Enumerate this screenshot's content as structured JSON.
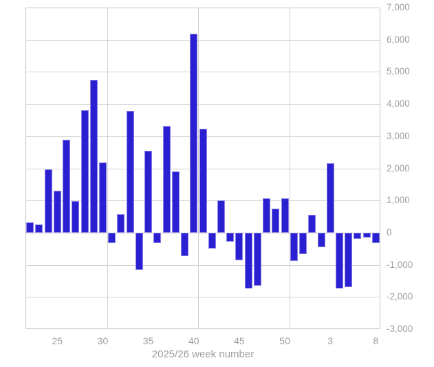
{
  "chart_data": {
    "type": "bar",
    "title": "",
    "xlabel": "2025/26 week number",
    "ylabel": "",
    "ylim": [
      -3000,
      7000
    ],
    "grid": true,
    "legend": "none",
    "y_axis_side": "right",
    "y_tick_values": [
      7000,
      6000,
      5000,
      4000,
      3000,
      2000,
      1000,
      0,
      -1000,
      -2000,
      -3000
    ],
    "y_tick_labels": [
      "7,000",
      "6,000",
      "5,000",
      "4,000",
      "3,000",
      "2,000",
      "1,000",
      "0",
      "-1,000",
      "-2,000",
      "-3,000"
    ],
    "categories": [
      "22",
      "23",
      "24",
      "25",
      "26",
      "27",
      "28",
      "29",
      "30",
      "31",
      "32",
      "33",
      "34",
      "35",
      "36",
      "37",
      "38",
      "39",
      "40",
      "41",
      "42",
      "43",
      "44",
      "45",
      "46",
      "47",
      "48",
      "49",
      "50",
      "51",
      "52",
      "1",
      "2",
      "3",
      "4",
      "5",
      "6",
      "7",
      "8"
    ],
    "values": [
      320,
      260,
      1970,
      1310,
      2880,
      980,
      3800,
      4760,
      2190,
      -320,
      580,
      3790,
      -1160,
      2540,
      -320,
      3320,
      1910,
      -740,
      6190,
      3240,
      -500,
      1000,
      -290,
      -860,
      -1740,
      -1660,
      1070,
      750,
      1060,
      -880,
      -660,
      560,
      -460,
      2160,
      -1740,
      -1690,
      -200,
      -150,
      -320
    ],
    "x_tick_labels": [
      "25",
      "30",
      "35",
      "40",
      "45",
      "50",
      "3",
      "8"
    ],
    "x_tick_indices": [
      3,
      8,
      13,
      18,
      23,
      28,
      33,
      38
    ],
    "vertical_gridline_boundaries": [
      9,
      19,
      29
    ],
    "colors": {
      "bar": "#2b1fd2",
      "gridline": "#d0d0d0",
      "axis_line": "#c2c2c2",
      "text": "#9e9e9e"
    }
  }
}
